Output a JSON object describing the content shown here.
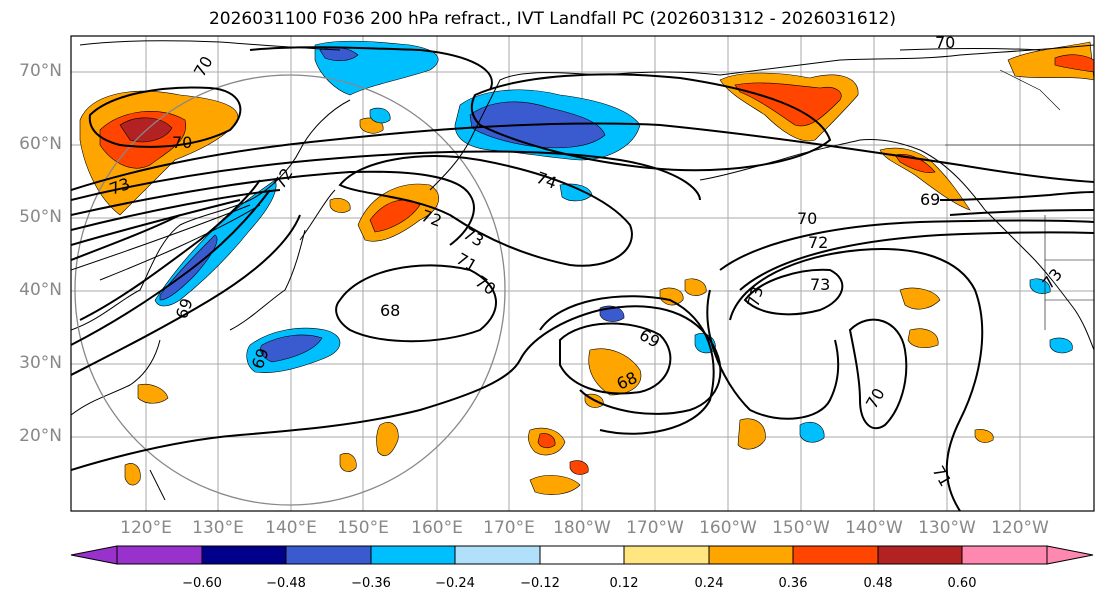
{
  "title": "2026031100 F036 200 hPa refract., IVT Landfall PC (2026031312 - 2026031612)",
  "lat_labels": [
    "70°N",
    "60°N",
    "50°N",
    "40°N",
    "30°N",
    "20°N"
  ],
  "lon_labels": [
    "120°E",
    "130°E",
    "140°E",
    "150°E",
    "160°E",
    "170°E",
    "180°W",
    "170°W",
    "160°W",
    "150°W",
    "140°W",
    "130°W",
    "120°W"
  ],
  "colorbar": {
    "ticks": [
      "−0.60",
      "−0.48",
      "−0.36",
      "−0.24",
      "−0.12",
      "0.12",
      "0.24",
      "0.36",
      "0.48",
      "0.60"
    ],
    "colors": [
      "#9932cc",
      "#00008b",
      "#3a5bcf",
      "#00bfff",
      "#b0e0fa",
      "#ffffff",
      "#ffe680",
      "#ffa500",
      "#ff4500",
      "#b22222",
      "#ff88b0"
    ]
  },
  "contour_labels": [
    "70",
    "72",
    "73",
    "74",
    "70",
    "72",
    "73",
    "68",
    "71",
    "70",
    "69",
    "68",
    "69",
    "70",
    "72",
    "73",
    "73",
    "71",
    "70",
    "69",
    "73",
    "70",
    "69"
  ]
}
